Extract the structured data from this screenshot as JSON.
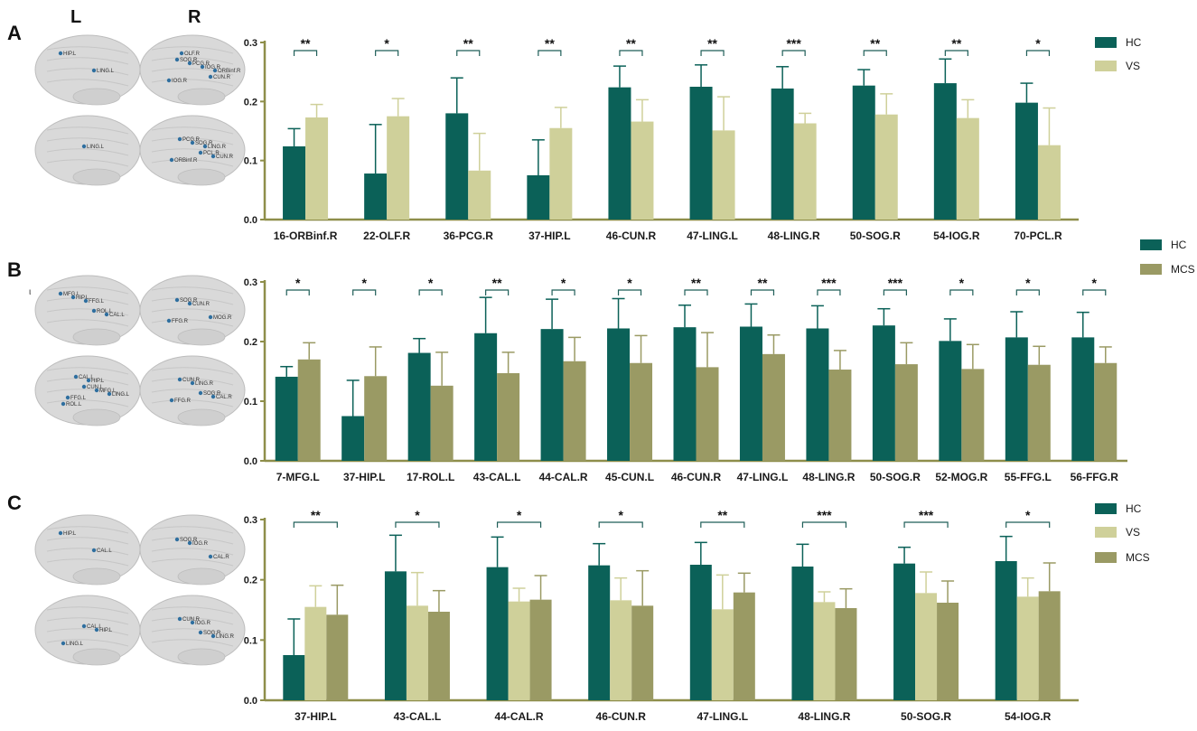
{
  "hemisphere_labels": {
    "left": "L",
    "right": "R"
  },
  "colors": {
    "HC": "#0b6158",
    "VS": "#cfd09a",
    "MCS": "#9a9a64",
    "axis": "#8e8e4a",
    "bracket": "#1f5e58",
    "brain": "#d9d9d9",
    "roi": "#2f6f9f"
  },
  "chart_data": [
    {
      "id": "A",
      "panel_label": "A",
      "type": "bar",
      "title": "",
      "xlabel": "",
      "ylabel": "",
      "ylim": [
        0,
        0.3
      ],
      "yticks": [
        "0.0",
        "0.1",
        "0.2",
        "0.3"
      ],
      "legend_position": "top-right",
      "categories": [
        "16-ORBinf.R",
        "22-OLF.R",
        "36-PCG.R",
        "37-HIP.L",
        "46-CUN.R",
        "47-LING.L",
        "48-LING.R",
        "50-SOG.R",
        "54-IOG.R",
        "70-PCL.R"
      ],
      "series": [
        {
          "name": "HC",
          "color": "#0b6158",
          "values": [
            0.124,
            0.078,
            0.18,
            0.075,
            0.224,
            0.225,
            0.222,
            0.227,
            0.231,
            0.198
          ],
          "err": [
            0.03,
            0.083,
            0.06,
            0.06,
            0.036,
            0.037,
            0.037,
            0.027,
            0.041,
            0.033
          ]
        },
        {
          "name": "VS",
          "color": "#cfd09a",
          "values": [
            0.173,
            0.175,
            0.083,
            0.155,
            0.166,
            0.151,
            0.163,
            0.178,
            0.172,
            0.126
          ],
          "err": [
            0.022,
            0.03,
            0.063,
            0.035,
            0.037,
            0.057,
            0.017,
            0.035,
            0.031,
            0.063
          ]
        }
      ],
      "significance": [
        "**",
        "*",
        "**",
        "**",
        "**",
        "**",
        "***",
        "**",
        "**",
        "*"
      ],
      "brain_rois": {
        "left_lateral": [
          "HIP.L",
          "LING.L"
        ],
        "right_lateral": [
          "SOG.R",
          "CUN.R",
          "PCG.R",
          "IOG.R",
          "IOG.R",
          "OLF.R",
          "ORBinf.R"
        ],
        "left_medial": [
          "LING.L"
        ],
        "right_medial": [
          "PCL.R",
          "PCG.R",
          "CUN.R",
          "SOG.R",
          "ORBinf.R",
          "LING.R"
        ]
      }
    },
    {
      "id": "B",
      "panel_label": "B",
      "type": "bar",
      "title": "",
      "xlabel": "",
      "ylabel": "",
      "ylim": [
        0,
        0.3
      ],
      "yticks": [
        "0.0",
        "0.1",
        "0.2",
        "0.3"
      ],
      "legend_position": "top-right",
      "categories": [
        "7-MFG.L",
        "37-HIP.L",
        "17-ROL.L",
        "43-CAL.L",
        "44-CAL.R",
        "45-CUN.L",
        "46-CUN.R",
        "47-LING.L",
        "48-LING.R",
        "50-SOG.R",
        "52-MOG.R",
        "55-FFG.L",
        "56-FFG.R"
      ],
      "series": [
        {
          "name": "HC",
          "color": "#0b6158",
          "values": [
            0.141,
            0.075,
            0.181,
            0.214,
            0.221,
            0.222,
            0.224,
            0.225,
            0.222,
            0.227,
            0.201,
            0.207,
            0.207
          ],
          "err": [
            0.017,
            0.06,
            0.024,
            0.06,
            0.05,
            0.05,
            0.037,
            0.038,
            0.038,
            0.028,
            0.037,
            0.043,
            0.042
          ]
        },
        {
          "name": "MCS",
          "color": "#9a9a64",
          "values": [
            0.17,
            0.142,
            0.126,
            0.147,
            0.167,
            0.164,
            0.157,
            0.179,
            0.153,
            0.162,
            0.154,
            0.161,
            0.164
          ],
          "err": [
            0.028,
            0.049,
            0.056,
            0.035,
            0.04,
            0.046,
            0.058,
            0.032,
            0.032,
            0.036,
            0.041,
            0.031,
            0.027
          ]
        }
      ],
      "significance": [
        "*",
        "*",
        "*",
        "**",
        "*",
        "*",
        "**",
        "**",
        "***",
        "***",
        "*",
        "*",
        "*"
      ],
      "brain_rois": {
        "left_lateral": [
          "MFG.L",
          "ROL.L",
          "HIP.L",
          "CAL.L",
          "FFG.L"
        ],
        "right_lateral": [
          "SOG.R",
          "MOG.R",
          "CUN.R",
          "FFG.R"
        ],
        "left_medial": [
          "CUN.L",
          "ROL.L",
          "MFG.L",
          "CAL.L",
          "LING.L",
          "HIP.L",
          "FFG.L"
        ],
        "right_medial": [
          "SOG.R",
          "CUN.R",
          "CAL.R",
          "LING.R",
          "FFG.R"
        ]
      },
      "stray_label": "ι"
    },
    {
      "id": "C",
      "panel_label": "C",
      "type": "bar",
      "title": "",
      "xlabel": "",
      "ylabel": "",
      "ylim": [
        0,
        0.3
      ],
      "yticks": [
        "0.0",
        "0.1",
        "0.2",
        "0.3"
      ],
      "legend_position": "top-right",
      "categories": [
        "37-HIP.L",
        "43-CAL.L",
        "44-CAL.R",
        "46-CUN.R",
        "47-LING.L",
        "48-LING.R",
        "50-SOG.R",
        "54-IOG.R"
      ],
      "series": [
        {
          "name": "HC",
          "color": "#0b6158",
          "values": [
            0.075,
            0.214,
            0.221,
            0.224,
            0.225,
            0.222,
            0.227,
            0.231
          ],
          "err": [
            0.06,
            0.06,
            0.05,
            0.036,
            0.037,
            0.037,
            0.027,
            0.041
          ]
        },
        {
          "name": "VS",
          "color": "#cfd09a",
          "values": [
            0.155,
            0.157,
            0.164,
            0.166,
            0.151,
            0.163,
            0.178,
            0.172
          ],
          "err": [
            0.035,
            0.055,
            0.022,
            0.037,
            0.057,
            0.017,
            0.035,
            0.031
          ]
        },
        {
          "name": "MCS",
          "color": "#9a9a64",
          "values": [
            0.142,
            0.147,
            0.167,
            0.157,
            0.179,
            0.153,
            0.162,
            0.181
          ],
          "err": [
            0.049,
            0.035,
            0.04,
            0.058,
            0.032,
            0.032,
            0.036,
            0.047
          ]
        }
      ],
      "significance": [
        "**",
        "*",
        "*",
        "*",
        "**",
        "***",
        "***",
        "*"
      ],
      "brain_rois": {
        "left_lateral": [
          "HIP.L",
          "CAL.L"
        ],
        "right_lateral": [
          "SOG.R",
          "CAL.R",
          "IOG.R"
        ],
        "left_medial": [
          "CAL.L",
          "LING.L",
          "HIP.L"
        ],
        "right_medial": [
          "SOG.R",
          "CUN.R",
          "LING.R",
          "IOG.R"
        ]
      }
    }
  ]
}
